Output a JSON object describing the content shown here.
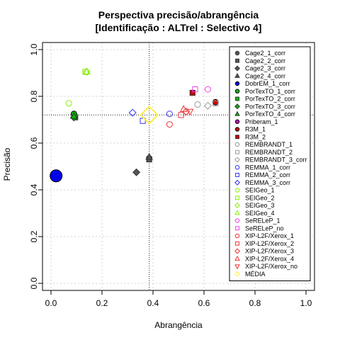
{
  "chart_data": {
    "type": "scatter",
    "title_line1": "Perspectiva precisão/abrangência",
    "title_line2": "[Identificação : ALTrel : Selectivo 4]",
    "xlabel": "Abrangência",
    "ylabel": "Precisão",
    "xlim": [
      0,
      1
    ],
    "ylim": [
      0,
      1
    ],
    "xticks": [
      "0.0",
      "0.2",
      "0.4",
      "0.6",
      "0.8",
      "1.0"
    ],
    "yticks": [
      "0.0",
      "0.2",
      "0.4",
      "0.6",
      "0.8",
      "1.0"
    ],
    "grid": true,
    "legend_position": "right",
    "reference_lines": {
      "x": 0.385,
      "y": 0.72
    },
    "series": [
      {
        "name": "Cage2_1_corr",
        "marker": "circle",
        "color": "#555555",
        "filled": true,
        "x": 0.385,
        "y": 0.535
      },
      {
        "name": "Cage2_2_corr",
        "marker": "square",
        "color": "#555555",
        "filled": true,
        "x": 0.385,
        "y": 0.53
      },
      {
        "name": "Cage2_3_corr",
        "marker": "diamond",
        "color": "#555555",
        "filled": true,
        "x": 0.335,
        "y": 0.475
      },
      {
        "name": "Cage2_4_corr",
        "marker": "triangle",
        "color": "#555555",
        "filled": true,
        "x": 0.385,
        "y": 0.54
      },
      {
        "name": "DobrEM_1_corr",
        "marker": "circle",
        "color": "#0000ee",
        "filled": true,
        "x": 0.02,
        "y": 0.46,
        "size": "large"
      },
      {
        "name": "PorTexTO_1_corr",
        "marker": "circle",
        "color": "#00bb00",
        "filled": true,
        "x": 0.09,
        "y": 0.725
      },
      {
        "name": "PorTexTO_2_corr",
        "marker": "square",
        "color": "#00bb00",
        "filled": true,
        "x": 0.095,
        "y": 0.71
      },
      {
        "name": "PorTexTO_3_corr",
        "marker": "diamond",
        "color": "#00bb00",
        "filled": true,
        "x": 0.09,
        "y": 0.71
      },
      {
        "name": "PorTexTO_4_corr",
        "marker": "triangle",
        "color": "#00bb00",
        "filled": true,
        "x": 0.09,
        "y": 0.715
      },
      {
        "name": "Priberam_1",
        "marker": "circle",
        "color": "#cc00cc",
        "filled": true,
        "x": null,
        "y": null
      },
      {
        "name": "R3M_1",
        "marker": "circle",
        "color": "#cc0000",
        "filled": true,
        "x": 0.645,
        "y": 0.775
      },
      {
        "name": "R3M_2",
        "marker": "square",
        "color": "#cc0000",
        "filled": true,
        "x": 0.555,
        "y": 0.815
      },
      {
        "name": "REMBRANDT_1",
        "marker": "circle",
        "color": "#999999",
        "filled": false,
        "x": 0.575,
        "y": 0.765
      },
      {
        "name": "REMBRANDT_2",
        "marker": "square",
        "color": "#999999",
        "filled": false,
        "x": 0.645,
        "y": 0.77
      },
      {
        "name": "REMBRANDT_3_corr",
        "marker": "diamond",
        "color": "#999999",
        "filled": false,
        "x": 0.615,
        "y": 0.76
      },
      {
        "name": "REMMA_1_corr",
        "marker": "circle",
        "color": "#3333ff",
        "filled": false,
        "x": 0.465,
        "y": 0.725
      },
      {
        "name": "REMMA_2_corr",
        "marker": "square",
        "color": "#3333ff",
        "filled": false,
        "x": 0.36,
        "y": 0.695
      },
      {
        "name": "REMMA_3_corr",
        "marker": "diamond",
        "color": "#3333ff",
        "filled": false,
        "x": 0.32,
        "y": 0.73
      },
      {
        "name": "SEIGeo_1",
        "marker": "circle",
        "color": "#88ee00",
        "filled": false,
        "x": 0.07,
        "y": 0.77
      },
      {
        "name": "SEIGeo_2",
        "marker": "square",
        "color": "#88ee00",
        "filled": false,
        "x": 0.135,
        "y": 0.905
      },
      {
        "name": "SEIGeo_3",
        "marker": "diamond",
        "color": "#88ee00",
        "filled": false,
        "x": 0.14,
        "y": 0.905
      },
      {
        "name": "SEIGeo_4",
        "marker": "triangle",
        "color": "#88ee00",
        "filled": false,
        "x": 0.14,
        "y": 0.905
      },
      {
        "name": "SeRELeP_1",
        "marker": "circle",
        "color": "#ee44ee",
        "filled": false,
        "x": 0.615,
        "y": 0.83
      },
      {
        "name": "SeRELeP_no",
        "marker": "square",
        "color": "#ee44ee",
        "filled": false,
        "x": 0.565,
        "y": 0.83
      },
      {
        "name": "XIP-L2F/Xerox_1",
        "marker": "circle",
        "color": "#ee3333",
        "filled": false,
        "x": 0.465,
        "y": 0.68
      },
      {
        "name": "XIP-L2F/Xerox_2",
        "marker": "square",
        "color": "#ee3333",
        "filled": false,
        "x": 0.51,
        "y": 0.72
      },
      {
        "name": "XIP-L2F/Xerox_3",
        "marker": "diamond",
        "color": "#ee3333",
        "filled": false,
        "x": 0.53,
        "y": 0.735
      },
      {
        "name": "XIP-L2F/Xerox_4",
        "marker": "triangle",
        "color": "#ee3333",
        "filled": false,
        "x": 0.52,
        "y": 0.745
      },
      {
        "name": "XIP-L2F/Xerox_no",
        "marker": "triangle-down",
        "color": "#ee3333",
        "filled": false,
        "x": 0.545,
        "y": 0.735
      },
      {
        "name": "MÉDIA",
        "marker": "diamond",
        "color": "#ffee44",
        "filled": false,
        "x": 0.385,
        "y": 0.72,
        "size": "large"
      }
    ]
  }
}
